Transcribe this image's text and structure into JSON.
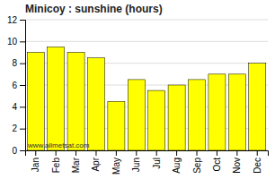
{
  "chart_data": {
    "type": "bar",
    "title": "Minicoy : sunshine (hours)",
    "categories": [
      "Jan",
      "Feb",
      "Mar",
      "Apr",
      "May",
      "Jun",
      "Jul",
      "Aug",
      "Sep",
      "Oct",
      "Nov",
      "Dec"
    ],
    "values": [
      9.0,
      9.5,
      9.0,
      8.5,
      4.5,
      6.5,
      5.5,
      6.0,
      6.5,
      7.0,
      7.0,
      8.0
    ],
    "color": "#FFFF00",
    "ylim": [
      0,
      12
    ],
    "yticks": [
      0,
      2,
      4,
      6,
      8,
      10,
      12
    ],
    "grid": true,
    "annotations": [
      "www.allmetsat.com"
    ]
  }
}
